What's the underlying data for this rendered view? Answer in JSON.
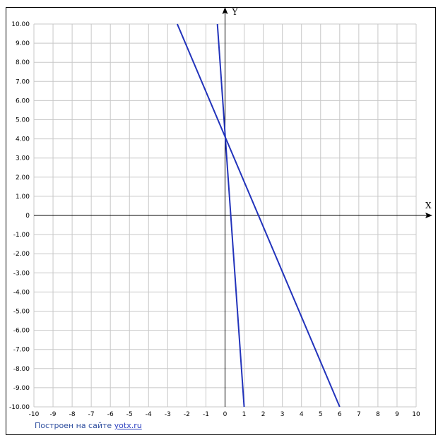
{
  "chart_data": {
    "type": "line",
    "title": "",
    "xlabel": "X",
    "ylabel": "Y",
    "xlim": [
      -10,
      10
    ],
    "ylim": [
      -10,
      10
    ],
    "grid": true,
    "x_ticks": [
      "-10",
      "-9",
      "-8",
      "-7",
      "-6",
      "-5",
      "-4",
      "-3",
      "-2",
      "-1",
      "0",
      "1",
      "2",
      "3",
      "4",
      "5",
      "6",
      "7",
      "8",
      "9",
      "10"
    ],
    "y_ticks": [
      "10.00",
      "9.00",
      "8.00",
      "7.00",
      "6.00",
      "5.00",
      "4.00",
      "3.00",
      "2.00",
      "1.00",
      "0",
      "-1.00",
      "-2.00",
      "-3.00",
      "-4.00",
      "-5.00",
      "-6.00",
      "-7.00",
      "-8.00",
      "-9.00",
      "-10.00"
    ],
    "series": [
      {
        "color": "#2233bb",
        "x": [
          -2.5,
          6.0
        ],
        "y": [
          10.0,
          -10.0
        ]
      },
      {
        "color": "#2233bb",
        "x": [
          -0.4,
          1.0
        ],
        "y": [
          10.0,
          -10.0
        ]
      }
    ]
  },
  "footer": {
    "text": "Построен на сайте",
    "link": "yotx.ru"
  }
}
